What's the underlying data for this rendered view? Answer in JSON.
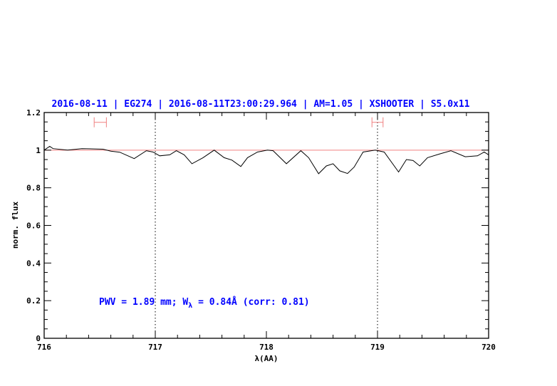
{
  "chart_data": {
    "type": "line",
    "title": "2016-08-11 | EG274 | 2016-08-11T23:00:29.964 | AM=1.05 | XSHOOTER | S5.0x11",
    "xlabel": "λ(AA)",
    "ylabel": "norm. flux",
    "xlim": [
      716,
      720
    ],
    "ylim": [
      0,
      1.2
    ],
    "x_major_ticks": [
      716,
      717,
      718,
      719,
      720
    ],
    "x_tick_labels": [
      "716",
      "717",
      "718",
      "719",
      "720"
    ],
    "x_minor_step": 0.2,
    "y_major_ticks": [
      0,
      0.2,
      0.4,
      0.6,
      0.8,
      1,
      1.2
    ],
    "y_tick_labels": [
      "0",
      "0.2",
      "0.4",
      "0.6",
      "0.8",
      "1",
      "1.2"
    ],
    "y_minor_step": 0.05,
    "grid": false,
    "reference_line": {
      "y": 1,
      "color": "#f08080"
    },
    "vertical_markers": [
      717,
      719
    ],
    "error_bars": [
      {
        "x_range": [
          716.45,
          716.56
        ],
        "y": 1.148
      },
      {
        "x_range": [
          718.95,
          719.05
        ],
        "y": 1.148
      }
    ],
    "annotation": {
      "prefix": "PWV = 1.89 mm; W",
      "subscript": "λ",
      "suffix": " = 0.84Å (corr: 0.81)"
    },
    "series": [
      {
        "color": "#000000",
        "x": [
          716.0,
          716.02,
          716.05,
          716.08,
          716.21,
          716.34,
          716.53,
          716.6,
          716.68,
          716.81,
          716.92,
          716.98,
          717.04,
          717.13,
          717.19,
          717.26,
          717.33,
          717.43,
          717.53,
          717.62,
          717.69,
          717.77,
          717.83,
          717.92,
          718.01,
          718.06,
          718.18,
          718.31,
          718.38,
          718.47,
          718.54,
          718.6,
          718.66,
          718.73,
          718.79,
          718.87,
          718.98,
          719.06,
          719.19,
          719.26,
          719.32,
          719.38,
          719.45,
          719.56,
          719.66,
          719.79,
          719.9,
          719.96,
          720.0
        ],
        "y": [
          1.0,
          1.008,
          1.02,
          1.008,
          1.0,
          1.008,
          1.005,
          0.995,
          0.989,
          0.955,
          0.997,
          0.99,
          0.97,
          0.975,
          0.997,
          0.975,
          0.928,
          0.96,
          1.0,
          0.96,
          0.947,
          0.913,
          0.96,
          0.99,
          1.0,
          0.997,
          0.928,
          0.997,
          0.96,
          0.875,
          0.916,
          0.928,
          0.89,
          0.876,
          0.91,
          0.99,
          1.0,
          0.99,
          0.884,
          0.95,
          0.945,
          0.916,
          0.96,
          0.98,
          0.997,
          0.965,
          0.97,
          0.99,
          0.975
        ]
      }
    ],
    "colors": {
      "title": "#0000ff",
      "annotation": "#0000ff",
      "error_bar": "#f08080",
      "spectrum": "#000000"
    }
  }
}
